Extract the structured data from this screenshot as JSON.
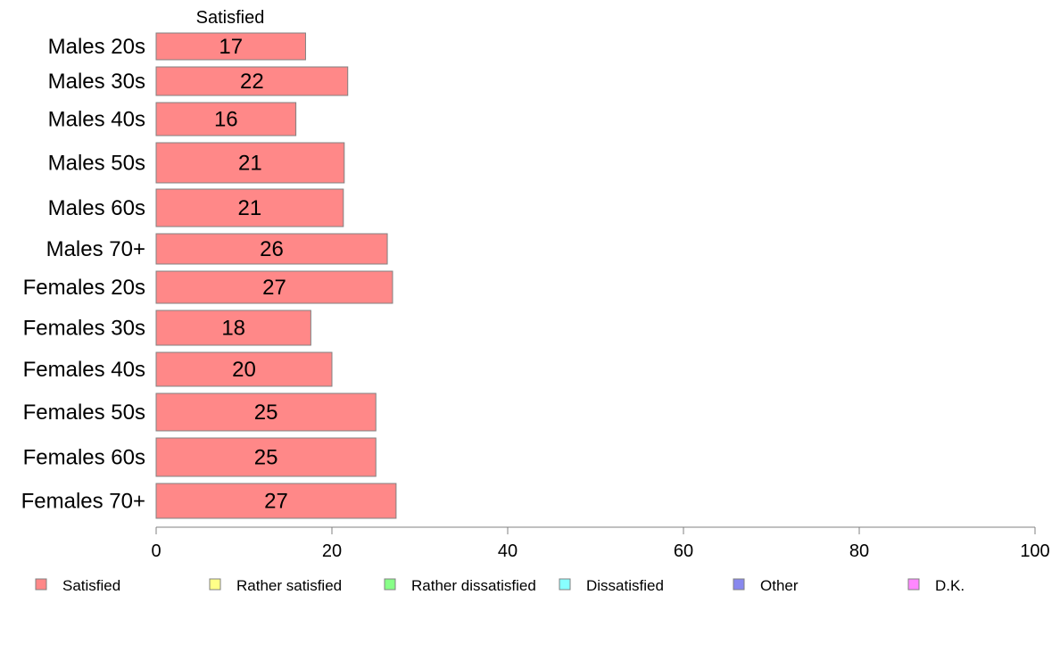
{
  "chart_data": {
    "type": "bar",
    "orientation": "horizontal",
    "stacked": true,
    "title": "",
    "column_header": "Satisfied",
    "xlim": [
      0,
      100
    ],
    "x_ticks": [
      0,
      20,
      40,
      60,
      80,
      100
    ],
    "x_tick_labels": [
      "0",
      "20",
      "40",
      "60",
      "80",
      "100"
    ],
    "grid": false,
    "categories": [
      "Males 20s",
      "Males 30s",
      "Males 40s",
      "Males 50s",
      "Males 60s",
      "Males 70+",
      "Females 20s",
      "Females 30s",
      "Females 40s",
      "Females 50s",
      "Females 60s",
      "Females 70+"
    ],
    "series": [
      {
        "name": "Satisfied",
        "color": "#ff8888",
        "values": [
          17,
          22,
          16,
          21,
          21,
          26,
          27,
          18,
          20,
          25,
          25,
          27
        ],
        "plot_values": [
          17,
          21.8,
          15.9,
          21.4,
          21.3,
          26.3,
          26.9,
          17.6,
          20.0,
          25.0,
          25.0,
          27.3
        ],
        "data_labels": [
          "17",
          "22",
          "16",
          "21",
          "21",
          "26",
          "27",
          "18",
          "20",
          "25",
          "25",
          "27"
        ]
      }
    ],
    "legend": {
      "placement": "bottom",
      "items": [
        {
          "name": "Satisfied",
          "color": "#ff8888"
        },
        {
          "name": "Rather satisfied",
          "color": "#ffff88"
        },
        {
          "name": "Rather dissatisfied",
          "color": "#88ff88"
        },
        {
          "name": "Dissatisfied",
          "color": "#88ffff"
        },
        {
          "name": "Other",
          "color": "#8888ee"
        },
        {
          "name": "D.K.",
          "color": "#ff88ff"
        }
      ]
    },
    "bar_stroke": "#808080",
    "axis_color": "#808080"
  }
}
